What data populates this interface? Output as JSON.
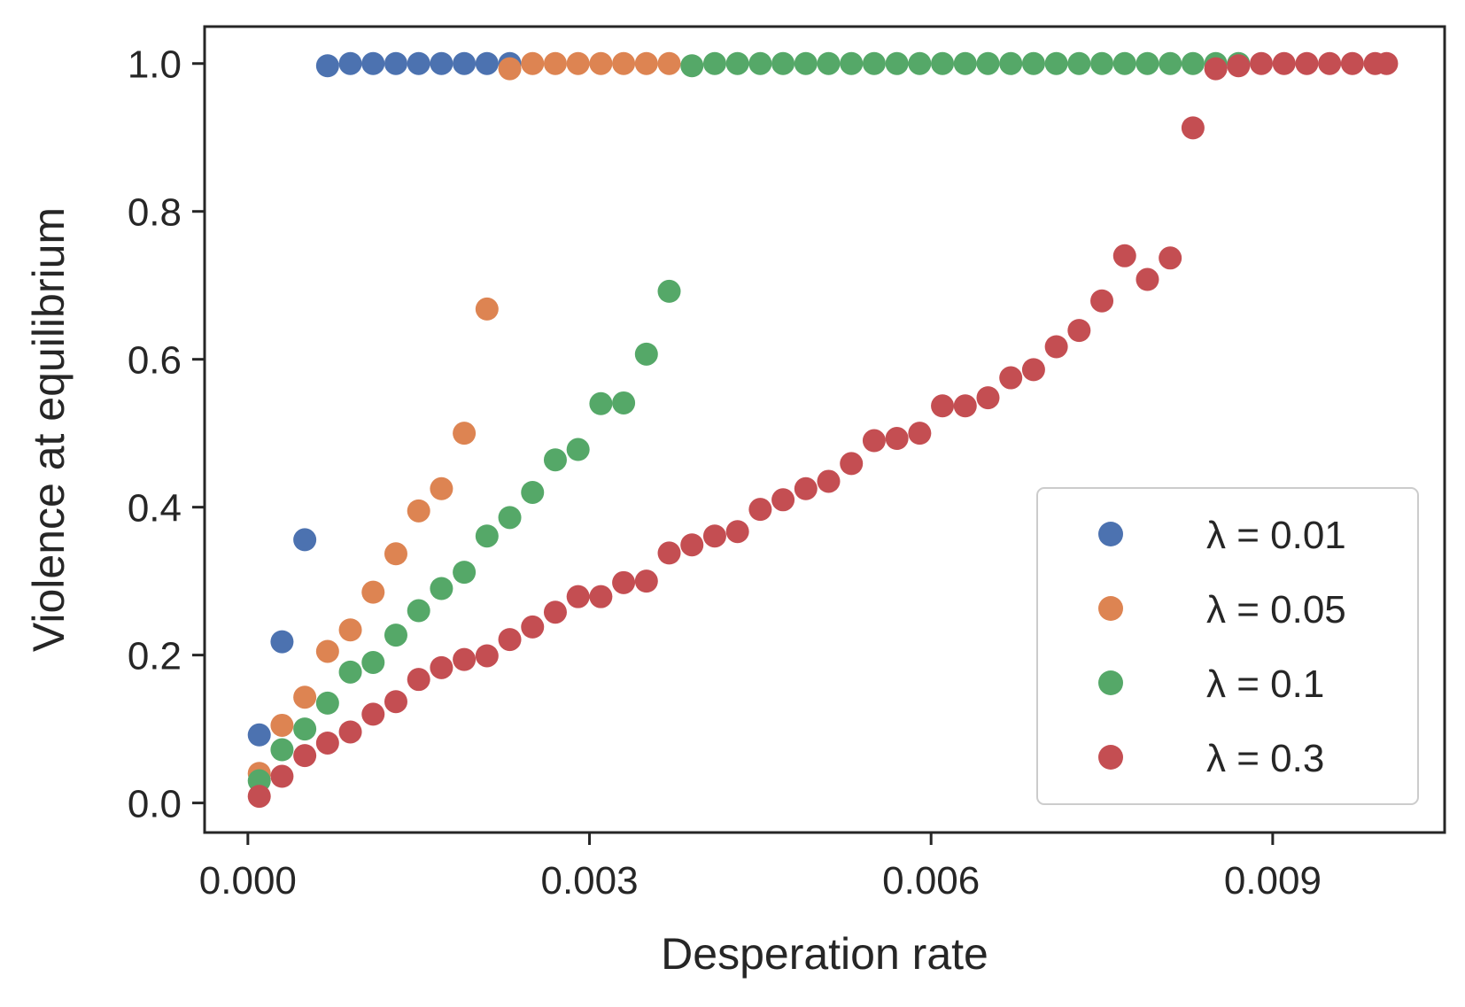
{
  "chart_data": {
    "type": "scatter",
    "xlabel": "Desperation rate",
    "ylabel": "Violence at equilibrium",
    "xlim": [
      -0.00038,
      0.01051
    ],
    "ylim": [
      -0.04,
      1.05
    ],
    "x_ticks": [
      {
        "value": 0.0,
        "label": "0.000"
      },
      {
        "value": 0.003,
        "label": "0.003"
      },
      {
        "value": 0.006,
        "label": "0.006"
      },
      {
        "value": 0.009,
        "label": "0.009"
      }
    ],
    "y_ticks": [
      {
        "value": 0.0,
        "label": "0.0"
      },
      {
        "value": 0.2,
        "label": "0.2"
      },
      {
        "value": 0.4,
        "label": "0.4"
      },
      {
        "value": 0.6,
        "label": "0.6"
      },
      {
        "value": 0.8,
        "label": "0.8"
      },
      {
        "value": 1.0,
        "label": "1.0"
      }
    ],
    "grid": false,
    "legend": {
      "position": "lower-right"
    },
    "series": [
      {
        "name": "λ = 0.01",
        "color": "#4c72b0",
        "points": [
          [
            0.0001,
            0.092
          ],
          [
            0.0003,
            0.218
          ],
          [
            0.0005,
            0.356
          ],
          [
            0.0007,
            0.997
          ],
          [
            0.0009,
            1.0
          ],
          [
            0.0011,
            1.0
          ],
          [
            0.0013,
            1.0
          ],
          [
            0.0015,
            1.0
          ],
          [
            0.0017,
            1.0
          ],
          [
            0.0019,
            1.0
          ],
          [
            0.0021,
            1.0
          ],
          [
            0.0023,
            1.0
          ]
        ]
      },
      {
        "name": "λ = 0.05",
        "color": "#dd8452",
        "points": [
          [
            0.0001,
            0.04
          ],
          [
            0.0003,
            0.105
          ],
          [
            0.0005,
            0.143
          ],
          [
            0.0007,
            0.205
          ],
          [
            0.0009,
            0.234
          ],
          [
            0.0011,
            0.285
          ],
          [
            0.0013,
            0.337
          ],
          [
            0.0015,
            0.395
          ],
          [
            0.0017,
            0.425
          ],
          [
            0.0019,
            0.5
          ],
          [
            0.0021,
            0.668
          ],
          [
            0.0023,
            0.993
          ],
          [
            0.0025,
            1.0
          ],
          [
            0.0027,
            1.0
          ],
          [
            0.0029,
            1.0
          ],
          [
            0.0031,
            1.0
          ],
          [
            0.0033,
            1.0
          ],
          [
            0.0035,
            1.0
          ],
          [
            0.0037,
            1.0
          ]
        ]
      },
      {
        "name": "λ = 0.1",
        "color": "#55a868",
        "points": [
          [
            0.0001,
            0.03
          ],
          [
            0.0003,
            0.072
          ],
          [
            0.0005,
            0.1
          ],
          [
            0.0007,
            0.135
          ],
          [
            0.0009,
            0.177
          ],
          [
            0.0011,
            0.19
          ],
          [
            0.0013,
            0.227
          ],
          [
            0.0015,
            0.26
          ],
          [
            0.0017,
            0.29
          ],
          [
            0.0019,
            0.312
          ],
          [
            0.0021,
            0.361
          ],
          [
            0.0023,
            0.386
          ],
          [
            0.0025,
            0.42
          ],
          [
            0.0027,
            0.464
          ],
          [
            0.0029,
            0.478
          ],
          [
            0.0031,
            0.54
          ],
          [
            0.0033,
            0.541
          ],
          [
            0.0035,
            0.607
          ],
          [
            0.0037,
            0.692
          ],
          [
            0.0039,
            0.997
          ],
          [
            0.0041,
            1.0
          ],
          [
            0.0043,
            1.0
          ],
          [
            0.0045,
            1.0
          ],
          [
            0.0047,
            1.0
          ],
          [
            0.0049,
            1.0
          ],
          [
            0.0051,
            1.0
          ],
          [
            0.0053,
            1.0
          ],
          [
            0.0055,
            1.0
          ],
          [
            0.0057,
            1.0
          ],
          [
            0.0059,
            1.0
          ],
          [
            0.0061,
            1.0
          ],
          [
            0.0063,
            1.0
          ],
          [
            0.0065,
            1.0
          ],
          [
            0.0067,
            1.0
          ],
          [
            0.0069,
            1.0
          ],
          [
            0.0071,
            1.0
          ],
          [
            0.0073,
            1.0
          ],
          [
            0.0075,
            1.0
          ],
          [
            0.0077,
            1.0
          ],
          [
            0.0079,
            1.0
          ],
          [
            0.0081,
            1.0
          ],
          [
            0.0083,
            1.0
          ],
          [
            0.0085,
            1.0
          ],
          [
            0.0087,
            1.0
          ]
        ]
      },
      {
        "name": "λ = 0.3",
        "color": "#c44e52",
        "points": [
          [
            0.0001,
            0.009
          ],
          [
            0.0003,
            0.036
          ],
          [
            0.0005,
            0.064
          ],
          [
            0.0007,
            0.081
          ],
          [
            0.0009,
            0.096
          ],
          [
            0.0011,
            0.12
          ],
          [
            0.0013,
            0.137
          ],
          [
            0.0015,
            0.167
          ],
          [
            0.0017,
            0.183
          ],
          [
            0.0019,
            0.194
          ],
          [
            0.0021,
            0.199
          ],
          [
            0.0023,
            0.221
          ],
          [
            0.0025,
            0.238
          ],
          [
            0.0027,
            0.258
          ],
          [
            0.0029,
            0.279
          ],
          [
            0.0031,
            0.279
          ],
          [
            0.0033,
            0.298
          ],
          [
            0.0035,
            0.3
          ],
          [
            0.0037,
            0.338
          ],
          [
            0.0039,
            0.349
          ],
          [
            0.0041,
            0.361
          ],
          [
            0.0043,
            0.367
          ],
          [
            0.0045,
            0.397
          ],
          [
            0.0047,
            0.41
          ],
          [
            0.0049,
            0.425
          ],
          [
            0.0051,
            0.435
          ],
          [
            0.0053,
            0.459
          ],
          [
            0.0055,
            0.49
          ],
          [
            0.0057,
            0.493
          ],
          [
            0.0059,
            0.5
          ],
          [
            0.0061,
            0.537
          ],
          [
            0.0063,
            0.537
          ],
          [
            0.0065,
            0.548
          ],
          [
            0.0067,
            0.575
          ],
          [
            0.0069,
            0.586
          ],
          [
            0.0071,
            0.617
          ],
          [
            0.0073,
            0.639
          ],
          [
            0.0075,
            0.679
          ],
          [
            0.0077,
            0.74
          ],
          [
            0.0079,
            0.708
          ],
          [
            0.0081,
            0.737
          ],
          [
            0.0083,
            0.913
          ],
          [
            0.0085,
            0.993
          ],
          [
            0.0087,
            0.997
          ],
          [
            0.0089,
            1.0
          ],
          [
            0.0091,
            1.0
          ],
          [
            0.0093,
            1.0
          ],
          [
            0.0095,
            1.0
          ],
          [
            0.0097,
            1.0
          ],
          [
            0.0099,
            1.0
          ],
          [
            0.01,
            1.0
          ]
        ]
      }
    ]
  }
}
